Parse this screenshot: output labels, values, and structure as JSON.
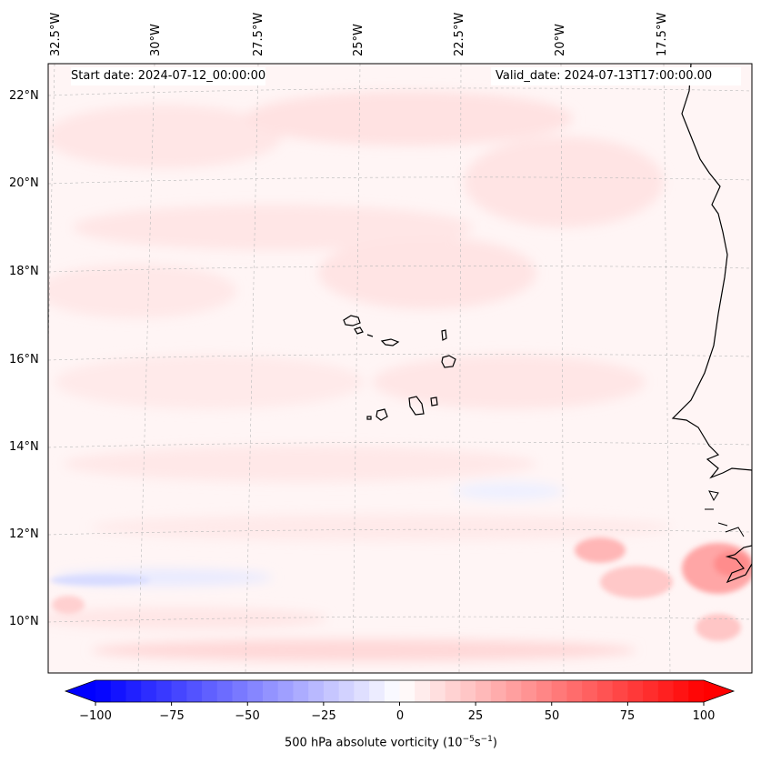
{
  "header": {
    "start_date": "Start date: 2024-07-12_00:00:00",
    "valid_date": "Valid_date: 2024-07-13T17:00:00.00"
  },
  "axes": {
    "lon_labels": [
      "32.5°W",
      "30°W",
      "27.5°W",
      "25°W",
      "22.5°W",
      "20°W",
      "17.5°W"
    ],
    "lat_labels": [
      "22°N",
      "20°N",
      "18°N",
      "16°N",
      "14°N",
      "12°N",
      "10°N"
    ]
  },
  "colorbar": {
    "label_prefix": "500 hPa absolute vorticity (10",
    "label_exp1": "−5",
    "label_mid": "s",
    "label_exp2": "−1",
    "label_suffix": ")",
    "ticks": [
      "−100",
      "−75",
      "−50",
      "−25",
      "0",
      "25",
      "50",
      "75",
      "100"
    ],
    "range": [
      -100,
      100
    ],
    "low_color": "#0000ff",
    "high_color": "#ff0000"
  },
  "map": {
    "region": "Cape Verde / West Africa",
    "field": "500 hPa absolute vorticity"
  }
}
